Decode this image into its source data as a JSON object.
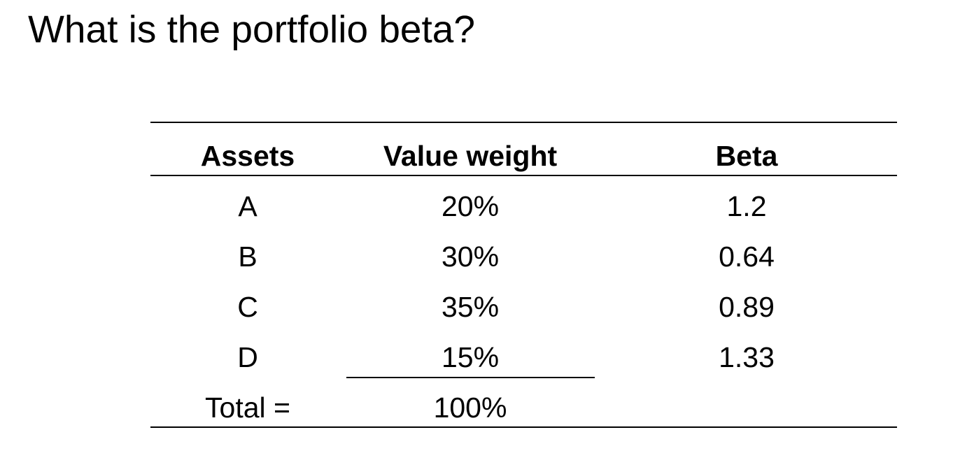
{
  "title": "What is the portfolio beta?",
  "table": {
    "header": [
      "Assets",
      "Value weight",
      "Beta"
    ],
    "rows": [
      [
        "A",
        "20%",
        "1.2"
      ],
      [
        "B",
        "30%",
        "0.64"
      ],
      [
        "C",
        "35%",
        "0.89"
      ],
      [
        "D",
        "15%",
        "1.33"
      ]
    ],
    "total": {
      "label": "Total =",
      "value": "100%"
    }
  }
}
